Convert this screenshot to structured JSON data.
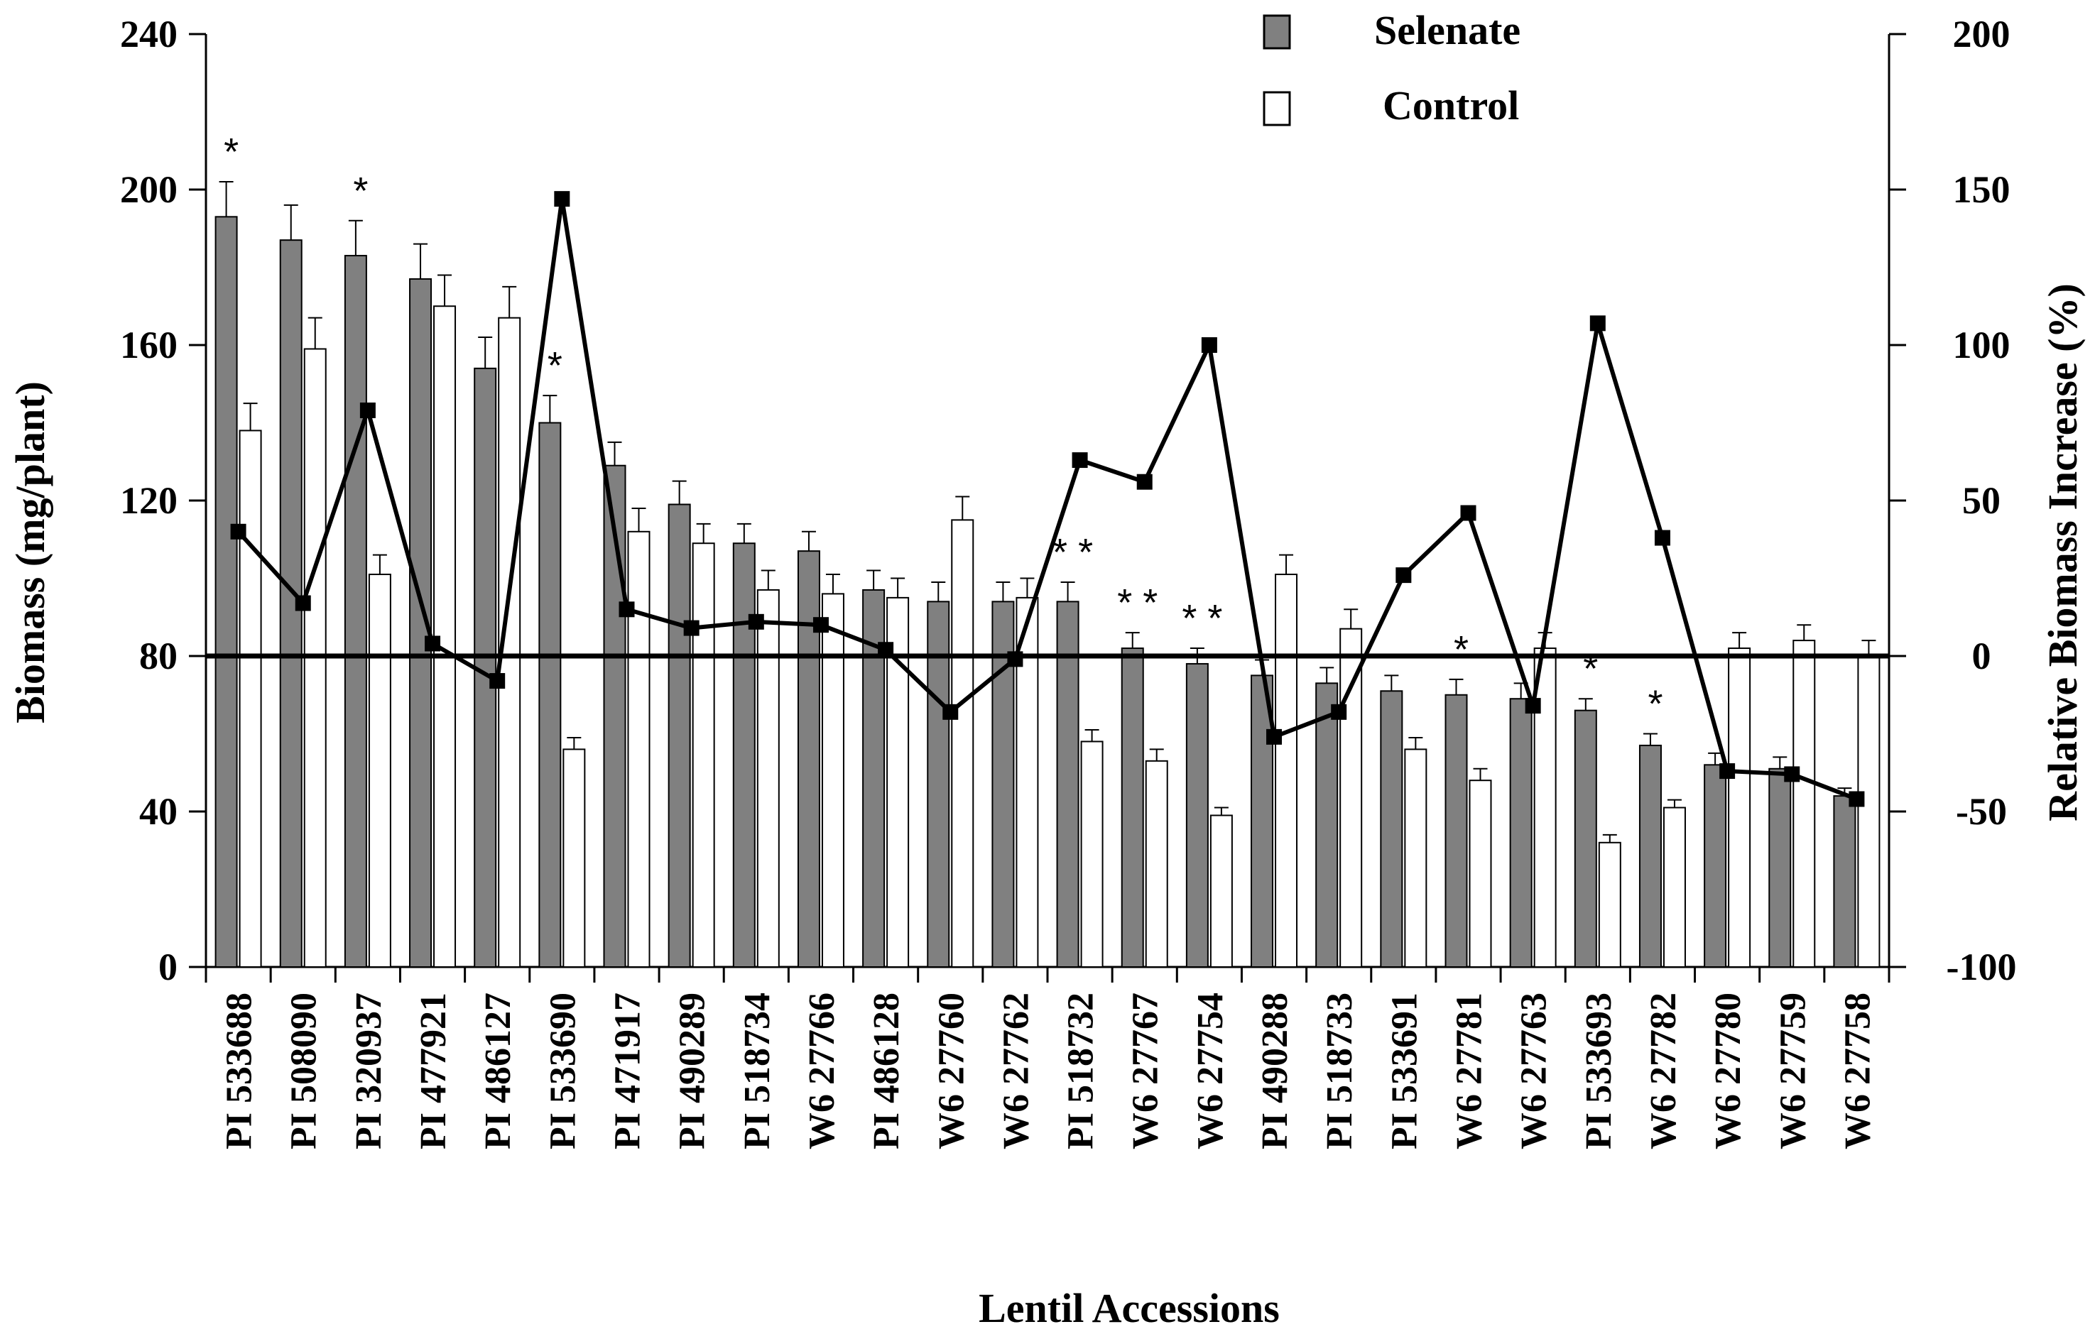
{
  "chart_data": {
    "type": "bar",
    "xlabel": "Lentil Accessions",
    "ylabel": "Biomass (mg/plant)",
    "y2label": "Relative Biomass Increase (%)",
    "ylim": [
      0,
      240
    ],
    "yticks": [
      0,
      40,
      80,
      120,
      160,
      200,
      240
    ],
    "y2lim": [
      -100,
      200
    ],
    "y2ticks": [
      -100,
      -50,
      0,
      50,
      100,
      150,
      200
    ],
    "categories": [
      "PI 533688",
      "PI 508090",
      "PI 320937",
      "PI 477921",
      "PI 486127",
      "PI 533690",
      "PI 471917",
      "PI 490289",
      "PI 518734",
      "W6 27766",
      "PI 486128",
      "W6 27760",
      "W6 27762",
      "PI 518732",
      "W6 27767",
      "W6 27754",
      "PI 490288",
      "PI 518733",
      "PI 533691",
      "W6 27781",
      "W6 27763",
      "PI 533693",
      "W6 27782",
      "W6 27780",
      "W6 27759",
      "W6 27758"
    ],
    "series": [
      {
        "name": "Selenate",
        "kind": "bar",
        "color": "#808080",
        "values": [
          193,
          187,
          183,
          177,
          154,
          140,
          129,
          119,
          109,
          107,
          97,
          94,
          94,
          94,
          82,
          78,
          75,
          73,
          71,
          70,
          69,
          66,
          57,
          52,
          51,
          44
        ],
        "errors": [
          9,
          9,
          9,
          9,
          8,
          7,
          6,
          6,
          5,
          5,
          5,
          5,
          5,
          5,
          4,
          4,
          4,
          4,
          4,
          4,
          4,
          3,
          3,
          3,
          3,
          2
        ]
      },
      {
        "name": "Control",
        "kind": "bar",
        "color": "#ffffff",
        "values": [
          138,
          159,
          101,
          170,
          167,
          56,
          112,
          109,
          97,
          96,
          95,
          115,
          95,
          58,
          53,
          39,
          101,
          87,
          56,
          48,
          82,
          32,
          41,
          82,
          84,
          80
        ],
        "errors": [
          7,
          8,
          5,
          8,
          8,
          3,
          6,
          5,
          5,
          5,
          5,
          6,
          5,
          3,
          3,
          2,
          5,
          5,
          3,
          3,
          4,
          2,
          2,
          4,
          4,
          4
        ]
      },
      {
        "name": "Relative Biomass Increase",
        "kind": "line",
        "axis": "right",
        "color": "#000000",
        "values": [
          40,
          17,
          79,
          4,
          -8,
          147,
          15,
          9,
          11,
          10,
          2,
          -18,
          -1,
          63,
          56,
          100,
          -26,
          -18,
          26,
          46,
          -16,
          107,
          38,
          -37,
          -38,
          -46
        ]
      }
    ],
    "reference_line": {
      "axis": "right",
      "value": 0
    },
    "significance": [
      "*",
      "",
      "*",
      "",
      "",
      "*",
      "",
      "",
      "",
      "",
      "",
      "",
      "",
      "**",
      "**",
      "**",
      "",
      "",
      "",
      "*",
      "",
      "*",
      "*",
      "",
      "",
      ""
    ],
    "legend": [
      {
        "label": "Selenate",
        "color": "#808080"
      },
      {
        "label": "Control",
        "color": "#ffffff"
      }
    ],
    "legend_position": "top-center"
  }
}
